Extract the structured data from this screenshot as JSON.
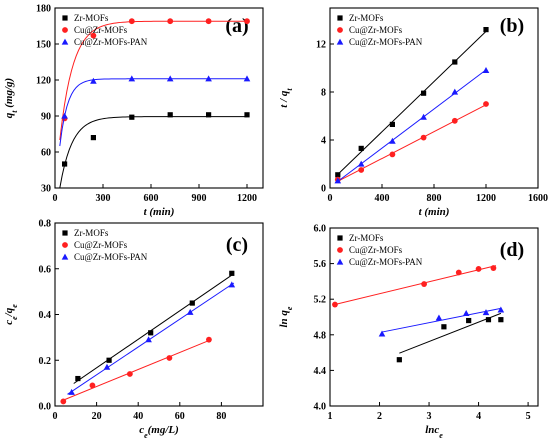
{
  "chart_data": [
    {
      "type": "line",
      "panel_label": "(a)",
      "xlabel": "t (min)",
      "ylabel": "q_t (mg/g)",
      "xlim": [
        0,
        1300
      ],
      "ylim": [
        30,
        180
      ],
      "xticks": [
        0,
        300,
        600,
        900,
        1200
      ],
      "yticks": [
        30,
        60,
        90,
        120,
        150,
        180
      ],
      "legend_position": "top-left",
      "series": [
        {
          "name": "Zr-MOFs",
          "color": "#000000",
          "marker": "square",
          "x": [
            60,
            240,
            480,
            720,
            960,
            1200
          ],
          "y": [
            50,
            72,
            89,
            91,
            91,
            91
          ],
          "fit": {
            "kind": "exp",
            "qe": 89.5,
            "k": 0.013,
            "q0": 30,
            "x0": 30
          }
        },
        {
          "name": "Cu@Zr-MOFs",
          "color": "#ff2020",
          "marker": "circle",
          "x": [
            60,
            240,
            480,
            720,
            960,
            1200
          ],
          "y": [
            88,
            157,
            169,
            169,
            169,
            169
          ],
          "fit": {
            "kind": "exp",
            "qe": 169,
            "k": 0.012,
            "q0": 70,
            "x0": 30
          }
        },
        {
          "name": "Cu@Zr-MOFs-PAN",
          "color": "#1a1aff",
          "marker": "triangle",
          "x": [
            60,
            240,
            480,
            720,
            960,
            1200
          ],
          "y": [
            90,
            119,
            121,
            121,
            121,
            121
          ],
          "fit": {
            "kind": "exp",
            "qe": 121,
            "k": 0.02,
            "q0": 65,
            "x0": 30
          }
        }
      ]
    },
    {
      "type": "scatter",
      "panel_label": "(b)",
      "xlabel": "t (min)",
      "ylabel": "t / q_t",
      "xlim": [
        0,
        1600
      ],
      "ylim": [
        0,
        15
      ],
      "xticks": [
        0,
        400,
        800,
        1200,
        1600
      ],
      "yticks": [
        0,
        4,
        8,
        12
      ],
      "legend_position": "top-left",
      "series": [
        {
          "name": "Zr-MOFs",
          "color": "#000000",
          "marker": "square",
          "x": [
            60,
            240,
            480,
            720,
            960,
            1200
          ],
          "y": [
            1.1,
            3.3,
            5.3,
            7.9,
            10.5,
            13.2
          ],
          "fit": {
            "kind": "linear",
            "x_range": [
              60,
              1200
            ]
          }
        },
        {
          "name": "Cu@Zr-MOFs",
          "color": "#ff2020",
          "marker": "circle",
          "x": [
            60,
            240,
            480,
            720,
            960,
            1200
          ],
          "y": [
            0.7,
            1.5,
            2.8,
            4.2,
            5.6,
            7.0
          ],
          "fit": {
            "kind": "linear",
            "x_range": [
              60,
              1200
            ]
          }
        },
        {
          "name": "Cu@Zr-MOFs-PAN",
          "color": "#1a1aff",
          "marker": "triangle",
          "x": [
            60,
            240,
            480,
            720,
            960,
            1200
          ],
          "y": [
            0.6,
            2.0,
            3.9,
            5.9,
            8.0,
            9.8
          ],
          "fit": {
            "kind": "linear",
            "x_range": [
              60,
              1200
            ]
          }
        }
      ]
    },
    {
      "type": "scatter",
      "panel_label": "(c)",
      "xlabel": "c_e(mg/L)",
      "ylabel": "c_e/q_e",
      "xlim": [
        0,
        100
      ],
      "ylim": [
        0,
        0.8
      ],
      "xticks": [
        0,
        20,
        40,
        60,
        80
      ],
      "yticks": [
        0.0,
        0.2,
        0.4,
        0.6,
        0.8
      ],
      "legend_position": "top-left",
      "series": [
        {
          "name": "Zr-MOFs",
          "color": "#000000",
          "marker": "square",
          "x": [
            11,
            26,
            46,
            66,
            85
          ],
          "y": [
            0.12,
            0.2,
            0.32,
            0.45,
            0.58
          ],
          "fit": {
            "kind": "linear",
            "x_range": [
              9,
              86
            ]
          }
        },
        {
          "name": "Cu@Zr-MOFs",
          "color": "#ff2020",
          "marker": "circle",
          "x": [
            4,
            18,
            36,
            55,
            74
          ],
          "y": [
            0.02,
            0.09,
            0.14,
            0.21,
            0.29
          ],
          "fit": {
            "kind": "linear",
            "x_range": [
              3,
              75
            ]
          }
        },
        {
          "name": "Cu@Zr-MOFs-PAN",
          "color": "#1a1aff",
          "marker": "triangle",
          "x": [
            8,
            25,
            45,
            65,
            85
          ],
          "y": [
            0.06,
            0.17,
            0.29,
            0.41,
            0.53
          ],
          "fit": {
            "kind": "linear",
            "x_range": [
              6,
              86
            ]
          }
        }
      ]
    },
    {
      "type": "scatter",
      "panel_label": "(d)",
      "xlabel": "lnc_e",
      "ylabel": "ln q_e",
      "xlim": [
        1,
        5.2
      ],
      "ylim": [
        4.0,
        6.0
      ],
      "xticks": [
        1,
        2,
        3,
        4,
        5
      ],
      "yticks": [
        4.0,
        4.4,
        4.8,
        5.2,
        5.6,
        6.0
      ],
      "legend_position": "top-left",
      "series": [
        {
          "name": "Zr-MOFs",
          "color": "#000000",
          "marker": "square",
          "x": [
            2.4,
            3.3,
            3.8,
            4.2,
            4.45
          ],
          "y": [
            4.52,
            4.89,
            4.96,
            4.97,
            4.97
          ],
          "fit": {
            "kind": "linear",
            "x_range": [
              2.4,
              4.45
            ]
          }
        },
        {
          "name": "Cu@Zr-MOFs",
          "color": "#ff2020",
          "marker": "circle",
          "x": [
            1.1,
            2.9,
            3.6,
            4.0,
            4.3
          ],
          "y": [
            5.14,
            5.37,
            5.5,
            5.54,
            5.55
          ],
          "fit": {
            "kind": "linear",
            "x_range": [
              1.1,
              4.35
            ]
          }
        },
        {
          "name": "Cu@Zr-MOFs-PAN",
          "color": "#1a1aff",
          "marker": "triangle",
          "x": [
            2.05,
            3.2,
            3.75,
            4.15,
            4.45
          ],
          "y": [
            4.81,
            4.99,
            5.04,
            5.05,
            5.08
          ],
          "fit": {
            "kind": "linear",
            "x_range": [
              2.05,
              4.45
            ]
          }
        }
      ]
    }
  ]
}
